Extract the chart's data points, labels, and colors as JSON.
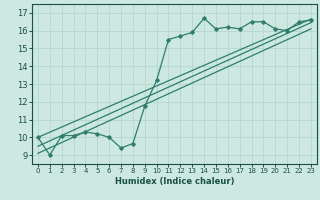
{
  "xlabel": "Humidex (Indice chaleur)",
  "bg_color": "#cce8e0",
  "line_color": "#2e7d6e",
  "grid_color": "#b8d8d0",
  "xlim": [
    -0.5,
    23.5
  ],
  "ylim": [
    8.5,
    17.5
  ],
  "xticks": [
    0,
    1,
    2,
    3,
    4,
    5,
    6,
    7,
    8,
    9,
    10,
    11,
    12,
    13,
    14,
    15,
    16,
    17,
    18,
    19,
    20,
    21,
    22,
    23
  ],
  "yticks": [
    9,
    10,
    11,
    12,
    13,
    14,
    15,
    16,
    17
  ],
  "series1_x": [
    0,
    1,
    2,
    3,
    4,
    5,
    6,
    7,
    8,
    9,
    10,
    11,
    12,
    13,
    14,
    15,
    16,
    17,
    18,
    19,
    20,
    21,
    22,
    23
  ],
  "series1_y": [
    10.0,
    9.0,
    10.1,
    10.1,
    10.3,
    10.2,
    10.0,
    9.4,
    9.65,
    11.75,
    13.2,
    15.5,
    15.7,
    15.9,
    16.7,
    16.1,
    16.2,
    16.1,
    16.5,
    16.5,
    16.1,
    16.0,
    16.5,
    16.6
  ],
  "line1_x": [
    0,
    23
  ],
  "line1_y": [
    10.0,
    16.65
  ],
  "line2_x": [
    0,
    23
  ],
  "line2_y": [
    9.5,
    16.45
  ],
  "line3_x": [
    0,
    23
  ],
  "line3_y": [
    9.1,
    16.1
  ]
}
